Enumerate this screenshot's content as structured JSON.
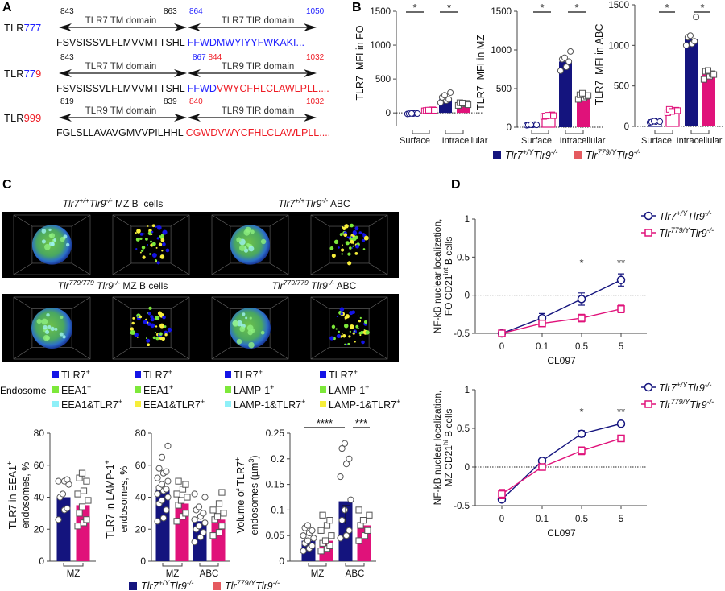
{
  "panel_labels": {
    "a": "A",
    "b": "B",
    "c": "C",
    "d": "D"
  },
  "colors": {
    "blue": "#1f1fff",
    "red": "#ee1c25",
    "wt": "#14147e",
    "mut": "#e0127a",
    "mut_legend": "#e55a5f",
    "tlr7": "#1414e6",
    "eea1": "#7de83a",
    "combo_cyan": "#8ef0f8",
    "combo_yellow": "#f6ee3a"
  },
  "panel_a": {
    "rows": [
      {
        "name": [
          {
            "t": "TLR"
          },
          {
            "t": "777",
            "color": "blue"
          }
        ],
        "tm_label": "TLR7 TM domain",
        "tm_start": "843",
        "tm_end": "863",
        "tir_label": "TLR7 TIR domain",
        "tir_start": [
          {
            "t": "864",
            "color": "blue"
          }
        ],
        "tir_end": [
          {
            "t": "1050",
            "color": "blue"
          }
        ],
        "sequence": [
          {
            "t": "FSVSISSVLFLMVVMTTSHL "
          },
          {
            "t": "FFWDMWYIYYFWKAKI...",
            "color": "blue"
          }
        ]
      },
      {
        "name": [
          {
            "t": "TLR"
          },
          {
            "t": "77",
            "color": "blue"
          },
          {
            "t": "9",
            "color": "red"
          }
        ],
        "tm_label": "TLR7 TM domain",
        "tm_start": "843",
        "tm_end": "",
        "tir_label": "TLR9 TIR domain",
        "tir_start": [
          {
            "t": "867",
            "color": "blue"
          },
          {
            "t": " 844",
            "color": "red"
          }
        ],
        "tir_end": [
          {
            "t": "1032",
            "color": "red"
          }
        ],
        "sequence": [
          {
            "t": "FSVSISSVLFLMVVMTTSHL "
          },
          {
            "t": "FFWD",
            "color": "blue"
          },
          {
            "t": "VWYCFHLCLAWLPLL....",
            "color": "red"
          }
        ]
      },
      {
        "name": [
          {
            "t": "TLR"
          },
          {
            "t": "999",
            "color": "red"
          }
        ],
        "tm_label": "TLR9 TM domain",
        "tm_start": "819",
        "tm_end": "839",
        "tir_label": "TLR9 TIR domain",
        "tir_start": [
          {
            "t": "840",
            "color": "red"
          }
        ],
        "tir_end": [
          {
            "t": "1032",
            "color": "red"
          }
        ],
        "sequence": [
          {
            "t": "FGLSLLAVAVGMVVPILHHL "
          },
          {
            "t": "CGWDVWYCFHLCLAWLPLL....",
            "color": "red"
          }
        ]
      }
    ]
  },
  "genotypes": {
    "wt": [
      {
        "t": "Tlr7",
        "sup": "+/Y",
        "it": true
      },
      {
        "t": "Tlr9",
        "sup": "-/-",
        "it": true
      }
    ],
    "mut": [
      {
        "t": "Tlr",
        "sup": "779/Y",
        "it": true
      },
      {
        "t": "Tlr9",
        "sup": "-/-",
        "it": true
      }
    ]
  },
  "panel_c": {
    "image_titles": [
      [
        {
          "t": "Tlr7",
          "sup": "+/+",
          "it": true
        },
        {
          "t": "Tlr9",
          "sup": "-/-",
          "it": true
        },
        {
          "t": " MZ B  cells"
        }
      ],
      [
        {
          "t": "Tlr7",
          "sup": "+/+",
          "it": true
        },
        {
          "t": "Tlr9",
          "sup": "-/-",
          "it": true
        },
        {
          "t": " ABC"
        }
      ],
      [
        {
          "t": "Tlr",
          "sup": "779/779",
          "it": true
        },
        {
          "t": " Tlr9",
          "sup": "-/-",
          "it": true
        },
        {
          "t": " MZ B cells"
        }
      ],
      [
        {
          "t": "Tlr",
          "sup": "779/779",
          "it": true
        },
        {
          "t": " Tlr9",
          "sup": "-/-",
          "it": true
        },
        {
          "t": " ABC"
        }
      ]
    ],
    "endosome_legend": {
      "title": "Endosome",
      "columns": [
        [
          {
            "label": [
              {
                "t": "TLR7",
                "sup": "+"
              }
            ],
            "color": "tlr7"
          },
          {
            "label": [
              {
                "t": "EEA1",
                "sup": "+"
              }
            ],
            "color": "eea1"
          },
          {
            "label": [
              {
                "t": "EEA1&TLR7",
                "sup": "+"
              }
            ],
            "color": "combo_cyan"
          }
        ],
        [
          {
            "label": [
              {
                "t": "TLR7",
                "sup": "+"
              }
            ],
            "color": "tlr7"
          },
          {
            "label": [
              {
                "t": "EEA1",
                "sup": "+"
              }
            ],
            "color": "eea1"
          },
          {
            "label": [
              {
                "t": "EEA1&TLR7",
                "sup": "+"
              }
            ],
            "color": "combo_yellow"
          }
        ],
        [
          {
            "label": [
              {
                "t": "TLR7",
                "sup": "+"
              }
            ],
            "color": "tlr7"
          },
          {
            "label": [
              {
                "t": "LAMP-1",
                "sup": "+"
              }
            ],
            "color": "eea1"
          },
          {
            "label": [
              {
                "t": "LAMP-1&TLR7",
                "sup": "+"
              }
            ],
            "color": "combo_cyan"
          }
        ],
        [
          {
            "label": [
              {
                "t": "TLR7",
                "sup": "+"
              }
            ],
            "color": "tlr7"
          },
          {
            "label": [
              {
                "t": "LAMP-1",
                "sup": "+"
              }
            ],
            "color": "eea1"
          },
          {
            "label": [
              {
                "t": "LAMP-1&TLR7",
                "sup": "+"
              }
            ],
            "color": "combo_yellow"
          }
        ]
      ]
    }
  },
  "chart_data": [
    {
      "id": "B1",
      "type": "bar",
      "ylabel": [
        "TLR7  MFI in FO"
      ],
      "categories": [
        "Surface",
        "Intracellular"
      ],
      "ylim": [
        -200,
        1500
      ],
      "yticks": [
        0,
        500,
        1000,
        1500
      ],
      "series": [
        {
          "name": "wt",
          "values": [
            -10,
            200
          ],
          "points": [
            [
              -15,
              -10,
              -5,
              -12,
              -8,
              -10
            ],
            [
              150,
              180,
              200,
              230,
              260,
              300
            ]
          ]
        },
        {
          "name": "mut",
          "values": [
            38,
            130
          ],
          "points": [
            [
              30,
              40,
              45,
              35,
              40,
              38
            ],
            [
              110,
              130,
              140,
              150,
              145,
              120
            ]
          ]
        }
      ],
      "significance": [
        {
          "label": "*",
          "category": "Surface"
        },
        {
          "label": "*",
          "category": "Intracellular"
        }
      ]
    },
    {
      "id": "B2",
      "type": "bar",
      "ylabel": [
        "TLR7  MFI in MZ"
      ],
      "categories": [
        "Surface",
        "Intracellular"
      ],
      "ylim": [
        0,
        1500
      ],
      "yticks": [
        0,
        500,
        1000,
        1500
      ],
      "series": [
        {
          "name": "wt",
          "values": [
            30,
            850
          ],
          "points": [
            [
              25,
              30,
              35,
              28,
              32,
              30
            ],
            [
              730,
              780,
              850,
              880,
              900,
              980
            ]
          ]
        },
        {
          "name": "mut",
          "values": [
            150,
            400
          ],
          "points": [
            [
              140,
              150,
              160,
              145,
              155,
              150
            ],
            [
              360,
              380,
              400,
              420,
              440,
              410
            ]
          ]
        }
      ],
      "significance": [
        {
          "label": "*",
          "category": "Surface"
        },
        {
          "label": "*",
          "category": "Intracellular"
        }
      ]
    },
    {
      "id": "B3",
      "type": "bar",
      "ylabel": [
        "TLR7  MFI in ABC"
      ],
      "categories": [
        "Surface",
        "Intracellular"
      ],
      "ylim": [
        0,
        1500
      ],
      "yticks": [
        0,
        500,
        1000,
        1500
      ],
      "series": [
        {
          "name": "wt",
          "values": [
            60,
            1080
          ],
          "points": [
            [
              50,
              60,
              70,
              55,
              65,
              60
            ],
            [
              1000,
              1020,
              1050,
              1100,
              1120,
              1350
            ]
          ]
        },
        {
          "name": "mut",
          "values": [
            190,
            640
          ],
          "points": [
            [
              170,
              190,
              200,
              210,
              185,
              195
            ],
            [
              580,
              620,
              650,
              680,
              690,
              640
            ]
          ]
        }
      ],
      "significance": [
        {
          "label": "*",
          "category": "Surface"
        },
        {
          "label": "*",
          "category": "Intracellular"
        }
      ]
    },
    {
      "id": "C1",
      "type": "bar",
      "ylabel": [
        [
          {
            "t": "TLR7 in EEA1",
            "sup": "+"
          }
        ],
        "endosomes, %"
      ],
      "categories": [
        "MZ"
      ],
      "ylim": [
        0,
        80
      ],
      "yticks": [
        0,
        20,
        40,
        60,
        80
      ],
      "series": [
        {
          "name": "wt",
          "values": [
            40
          ],
          "points": [
            [
              26,
              32,
              33,
              40,
              42,
              48,
              50,
              50,
              51
            ]
          ]
        },
        {
          "name": "mut",
          "values": [
            35
          ],
          "points": [
            [
              22,
              24,
              26,
              30,
              34,
              38,
              42,
              44,
              50,
              52,
              55
            ]
          ]
        }
      ],
      "significance": []
    },
    {
      "id": "C2",
      "type": "bar",
      "ylabel": [
        [
          {
            "t": "TLR7 in LAMP-1",
            "sup": "+"
          }
        ],
        "endosomes, %"
      ],
      "categories": [
        "MZ",
        "ABC"
      ],
      "ylim": [
        0,
        80
      ],
      "yticks": [
        0,
        20,
        40,
        60,
        80
      ],
      "series": [
        {
          "name": "wt",
          "values": [
            45,
            25
          ],
          "points": [
            [
              25,
              27,
              32,
              36,
              38,
              40,
              42,
              44,
              45,
              46,
              48,
              50,
              52,
              55,
              56,
              58,
              65,
              72
            ],
            [
              12,
              15,
              18,
              20,
              22,
              24,
              26,
              28,
              30,
              32,
              34,
              40,
              42
            ]
          ]
        },
        {
          "name": "mut",
          "values": [
            36,
            26
          ],
          "points": [
            [
              25,
              28,
              30,
              35,
              38,
              40,
              42,
              45,
              48,
              50
            ],
            [
              16,
              18,
              22,
              26,
              28,
              30,
              32,
              36,
              43
            ]
          ]
        }
      ],
      "significance": []
    },
    {
      "id": "C3",
      "type": "bar",
      "ylabel": [
        [
          {
            "t": "Volume of TLR7",
            "sup": "+"
          }
        ],
        [
          {
            "t": "endosomes (µm",
            "sup": "3"
          },
          {
            "t": ")"
          }
        ]
      ],
      "categories": [
        "MZ",
        "ABC"
      ],
      "ylim": [
        0,
        0.25
      ],
      "yticks": [
        0,
        0.05,
        0.1,
        0.15,
        0.2,
        0.25
      ],
      "series": [
        {
          "name": "wt",
          "values": [
            0.04,
            0.117
          ],
          "points": [
            [
              0.02,
              0.025,
              0.03,
              0.035,
              0.04,
              0.045,
              0.05,
              0.055,
              0.06,
              0.065,
              0.07
            ],
            [
              0.045,
              0.05,
              0.06,
              0.08,
              0.1,
              0.12,
              0.165,
              0.19,
              0.2,
              0.22,
              0.23
            ]
          ]
        },
        {
          "name": "mut",
          "values": [
            0.04,
            0.07
          ],
          "points": [
            [
              0.02,
              0.025,
              0.03,
              0.035,
              0.04,
              0.05,
              0.06,
              0.07,
              0.08,
              0.09
            ],
            [
              0.04,
              0.05,
              0.06,
              0.07,
              0.08,
              0.09,
              0.1
            ]
          ]
        }
      ],
      "significance": [
        {
          "label": "****",
          "between": [
            "MZ wt",
            "ABC wt"
          ]
        },
        {
          "label": "***",
          "between": [
            "ABC wt",
            "ABC mut"
          ]
        }
      ]
    },
    {
      "id": "D1",
      "type": "line",
      "ylabel": [
        "NF-kB nuclear localization,",
        [
          {
            "t": "FO CD21",
            "sup": "int"
          },
          {
            "t": " B cells"
          }
        ]
      ],
      "xlabel": "CL097",
      "x": [
        "0",
        "0.1",
        "0.5",
        "5"
      ],
      "ylim": [
        -0.5,
        1
      ],
      "yticks": [
        -0.5,
        0,
        0.5,
        1
      ],
      "series": [
        {
          "name": "wt",
          "values": [
            -0.5,
            -0.3,
            -0.05,
            0.2
          ],
          "err": [
            0.01,
            0.06,
            0.08,
            0.08
          ]
        },
        {
          "name": "mut",
          "values": [
            -0.5,
            -0.37,
            -0.3,
            -0.18
          ],
          "err": [
            0.01,
            0.04,
            0.05,
            0.05
          ]
        }
      ],
      "significance": [
        {
          "x": "0.5",
          "label": "*"
        },
        {
          "x": "5",
          "label": "**"
        }
      ]
    },
    {
      "id": "D2",
      "type": "line",
      "ylabel": [
        "NF-kB nuclear localization,",
        [
          {
            "t": "MZ CD21",
            "sup": "hi"
          },
          {
            "t": " B cells"
          }
        ]
      ],
      "xlabel": "CL097",
      "x": [
        "0",
        "0.1",
        "0.5",
        "5"
      ],
      "ylim": [
        -0.5,
        1
      ],
      "yticks": [
        -0.5,
        0,
        0.5,
        1
      ],
      "series": [
        {
          "name": "wt",
          "values": [
            -0.42,
            0.08,
            0.43,
            0.56
          ],
          "err": [
            0.02,
            0.02,
            0.04,
            0.02
          ]
        },
        {
          "name": "mut",
          "values": [
            -0.35,
            0.0,
            0.21,
            0.37
          ],
          "err": [
            0.06,
            0.02,
            0.05,
            0.02
          ]
        }
      ],
      "significance": [
        {
          "x": "0.5",
          "label": "*"
        },
        {
          "x": "5",
          "label": "**"
        }
      ]
    }
  ]
}
